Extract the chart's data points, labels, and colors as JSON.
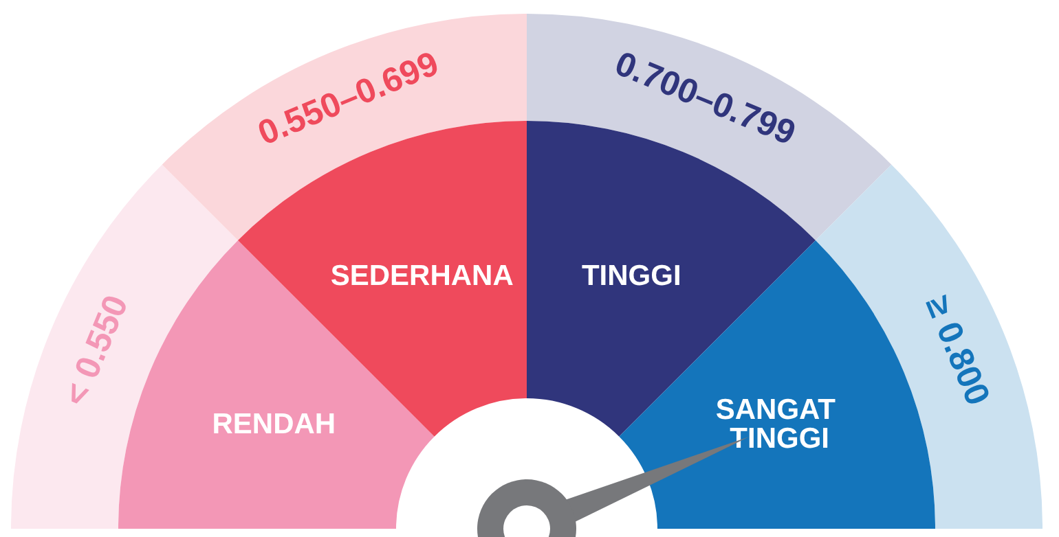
{
  "chart_data": {
    "type": "donut",
    "categories": [
      "RENDAH",
      "SEDERHANA",
      "TINGGI",
      "SANGAT TINGGI"
    ],
    "values": [
      25,
      25,
      25,
      25
    ],
    "colors": [
      "#f397b6",
      "#ef4a5c",
      "#30357c",
      "#1475bb"
    ],
    "annotations": [
      "< 0.550",
      "0.550–0.699",
      "0.700–0.799",
      "≥ 0.800"
    ],
    "needle": "SANGAT TINGGI",
    "legend": false
  }
}
